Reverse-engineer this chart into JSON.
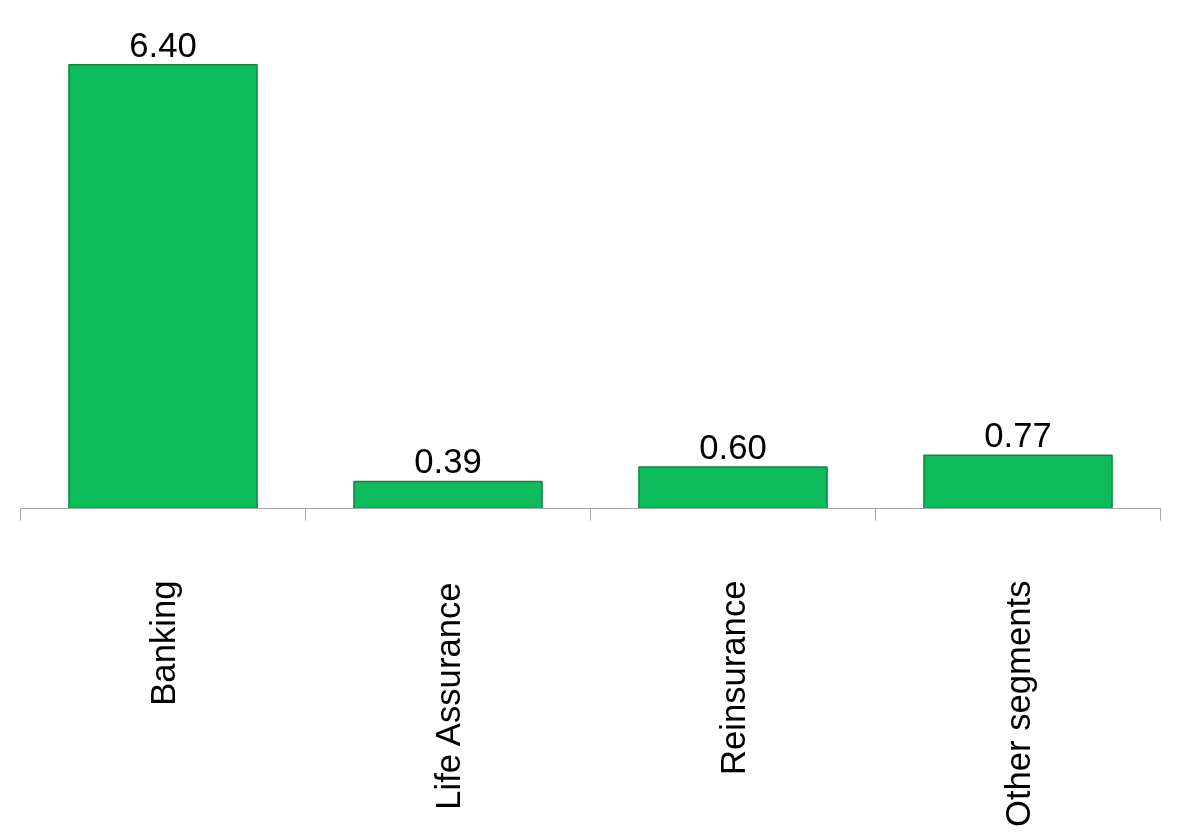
{
  "chart_data": {
    "type": "bar",
    "categories": [
      "Banking",
      "Life Assurance",
      "Reinsurance",
      "Other segments"
    ],
    "values": [
      6.4,
      0.39,
      0.6,
      0.77
    ],
    "value_labels": [
      "6.40",
      "0.39",
      "0.60",
      "0.77"
    ],
    "color": "#0dbb5a",
    "grid": false
  }
}
